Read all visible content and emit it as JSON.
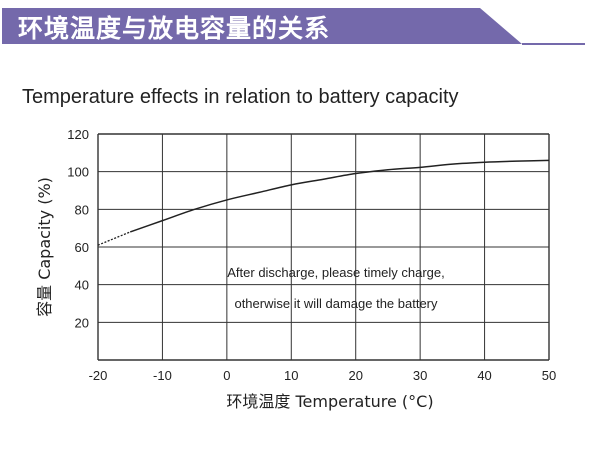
{
  "banner": {
    "title": "环境温度与放电容量的关系",
    "color": "#7469ab"
  },
  "chart_data": {
    "type": "line",
    "title": "Temperature effects in relation to battery capacity",
    "xlabel": "环境温度 Temperature (°C)",
    "ylabel": "容量 Capacity (%)",
    "xlim": [
      -20,
      50
    ],
    "ylim": [
      0,
      120
    ],
    "xticks": [
      -20,
      -10,
      0,
      10,
      20,
      30,
      40,
      50
    ],
    "yticks": [
      20,
      40,
      60,
      80,
      100,
      120
    ],
    "grid": true,
    "x": [
      -20,
      -15,
      -10,
      -5,
      0,
      5,
      10,
      15,
      20,
      25,
      30,
      35,
      40,
      45,
      50
    ],
    "values": [
      61,
      68,
      74,
      80,
      85,
      89,
      93,
      96,
      99,
      101,
      102.3,
      104,
      105,
      105.6,
      106
    ],
    "dashed_until_x": -15,
    "annotations": [
      "After discharge, please timely charge,",
      "otherwise it will damage the battery"
    ]
  }
}
